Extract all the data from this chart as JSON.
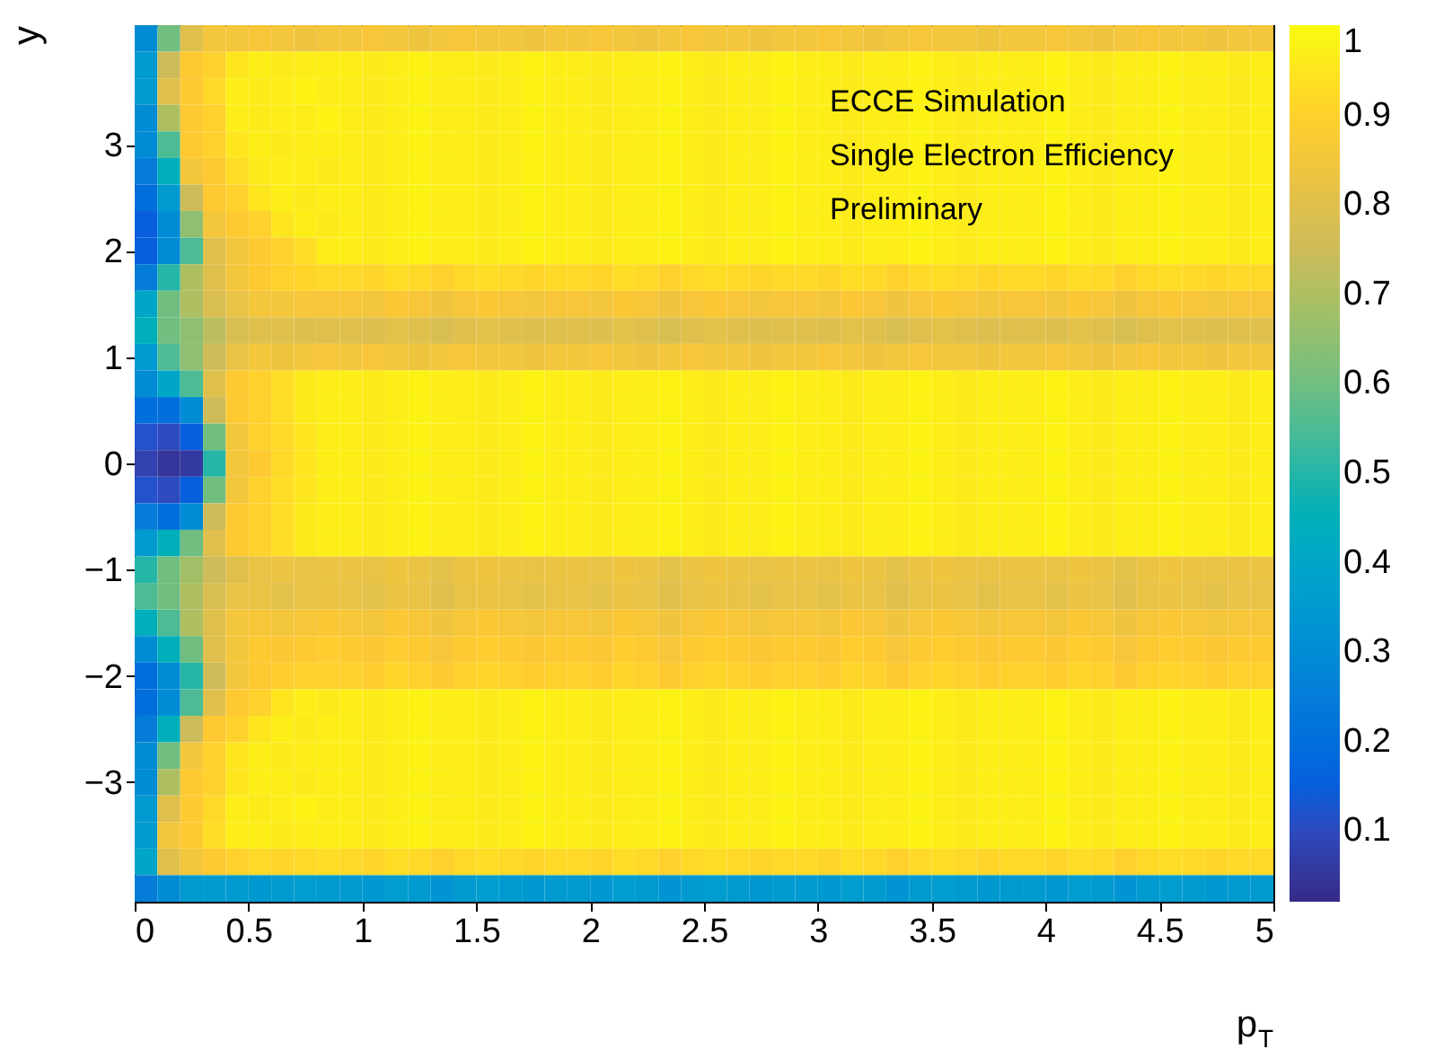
{
  "chart_data": {
    "type": "heatmap",
    "xlabel": "p$_{T}$",
    "ylabel": "y",
    "annotations": [
      "ECCE Simulation",
      "Single Electron Efficiency",
      "Preliminary"
    ],
    "xlim": [
      0,
      5
    ],
    "xticks": [
      0,
      0.5,
      1,
      1.5,
      2,
      2.5,
      3,
      3.5,
      4,
      4.5,
      5
    ],
    "ylim": [
      -4.125,
      4.125
    ],
    "yticks": [
      {
        "value": -3,
        "label": "−3"
      },
      {
        "value": -2,
        "label": "−2"
      },
      {
        "value": -1,
        "label": "−1"
      },
      0,
      1,
      2,
      3
    ],
    "clim": [
      0.02,
      1
    ],
    "cticks": [
      0.1,
      0.2,
      0.3,
      0.4,
      0.5,
      0.6,
      0.7,
      0.8,
      0.9,
      1
    ],
    "grid": false,
    "cells": [
      [
        0.3,
        0.6,
        0.8,
        0.85,
        0.85,
        0.86,
        0.85,
        0.84,
        0.85,
        0.85,
        0.86,
        0.85,
        0.84,
        0.85,
        0.86,
        0.85,
        0.85,
        0.84,
        0.85,
        0.85,
        0.86,
        0.85,
        0.84,
        0.85,
        0.86,
        0.85,
        0.85,
        0.84,
        0.85,
        0.85,
        0.86,
        0.85,
        0.84,
        0.85,
        0.86,
        0.85,
        0.85,
        0.84,
        0.85,
        0.85,
        0.86,
        0.85,
        0.84,
        0.85,
        0.86,
        0.85,
        0.85,
        0.84,
        0.85,
        0.85
      ],
      [
        0.35,
        0.75,
        0.88,
        0.9,
        0.95,
        0.97,
        0.96,
        0.97,
        0.97,
        0.97,
        0.96,
        0.97,
        0.98,
        0.97,
        0.97,
        0.96,
        0.97,
        0.98,
        0.97,
        0.97,
        0.96,
        0.97,
        0.97,
        0.98,
        0.97,
        0.96,
        0.97,
        0.97,
        0.98,
        0.97,
        0.97,
        0.96,
        0.97,
        0.97,
        0.98,
        0.97,
        0.96,
        0.97,
        0.97,
        0.97,
        0.98,
        0.97,
        0.96,
        0.97,
        0.97,
        0.98,
        0.97,
        0.97,
        0.96,
        0.97
      ],
      [
        0.35,
        0.8,
        0.88,
        0.92,
        0.97,
        0.96,
        0.97,
        0.98,
        0.97,
        0.97,
        0.96,
        0.97,
        0.98,
        0.97,
        0.97,
        0.96,
        0.97,
        0.98,
        0.97,
        0.97,
        0.96,
        0.97,
        0.97,
        0.98,
        0.97,
        0.96,
        0.97,
        0.97,
        0.98,
        0.97,
        0.97,
        0.96,
        0.97,
        0.97,
        0.98,
        0.97,
        0.96,
        0.97,
        0.97,
        0.97,
        0.98,
        0.97,
        0.96,
        0.97,
        0.97,
        0.98,
        0.97,
        0.97,
        0.96,
        0.97
      ],
      [
        0.3,
        0.7,
        0.88,
        0.9,
        0.97,
        0.96,
        0.97,
        0.97,
        0.98,
        0.97,
        0.96,
        0.97,
        0.98,
        0.97,
        0.97,
        0.96,
        0.97,
        0.98,
        0.97,
        0.97,
        0.96,
        0.97,
        0.97,
        0.98,
        0.97,
        0.96,
        0.97,
        0.97,
        0.98,
        0.97,
        0.97,
        0.96,
        0.97,
        0.97,
        0.98,
        0.97,
        0.96,
        0.97,
        0.97,
        0.97,
        0.98,
        0.97,
        0.96,
        0.97,
        0.97,
        0.98,
        0.97,
        0.97,
        0.96,
        0.97
      ],
      [
        0.3,
        0.55,
        0.88,
        0.9,
        0.95,
        0.97,
        0.96,
        0.97,
        0.97,
        0.97,
        0.96,
        0.97,
        0.98,
        0.97,
        0.97,
        0.96,
        0.97,
        0.98,
        0.97,
        0.97,
        0.96,
        0.97,
        0.97,
        0.98,
        0.97,
        0.96,
        0.97,
        0.97,
        0.98,
        0.97,
        0.97,
        0.96,
        0.97,
        0.97,
        0.98,
        0.97,
        0.96,
        0.97,
        0.97,
        0.97,
        0.98,
        0.97,
        0.96,
        0.97,
        0.97,
        0.98,
        0.97,
        0.97,
        0.96,
        0.97
      ],
      [
        0.25,
        0.45,
        0.85,
        0.88,
        0.93,
        0.96,
        0.97,
        0.97,
        0.96,
        0.97,
        0.96,
        0.97,
        0.98,
        0.97,
        0.97,
        0.96,
        0.97,
        0.98,
        0.97,
        0.97,
        0.96,
        0.97,
        0.97,
        0.98,
        0.97,
        0.96,
        0.97,
        0.97,
        0.98,
        0.97,
        0.97,
        0.96,
        0.97,
        0.97,
        0.98,
        0.97,
        0.96,
        0.97,
        0.97,
        0.97,
        0.98,
        0.97,
        0.96,
        0.97,
        0.97,
        0.98,
        0.97,
        0.97,
        0.96,
        0.97
      ],
      [
        0.2,
        0.35,
        0.75,
        0.88,
        0.9,
        0.95,
        0.97,
        0.96,
        0.97,
        0.97,
        0.96,
        0.97,
        0.98,
        0.97,
        0.97,
        0.96,
        0.97,
        0.98,
        0.97,
        0.97,
        0.96,
        0.97,
        0.97,
        0.98,
        0.97,
        0.96,
        0.97,
        0.97,
        0.98,
        0.97,
        0.97,
        0.96,
        0.97,
        0.97,
        0.98,
        0.97,
        0.96,
        0.97,
        0.97,
        0.97,
        0.98,
        0.97,
        0.96,
        0.97,
        0.97,
        0.98,
        0.97,
        0.97,
        0.96,
        0.97
      ],
      [
        0.15,
        0.3,
        0.65,
        0.85,
        0.88,
        0.9,
        0.95,
        0.97,
        0.96,
        0.97,
        0.96,
        0.97,
        0.98,
        0.97,
        0.97,
        0.96,
        0.97,
        0.98,
        0.97,
        0.97,
        0.96,
        0.97,
        0.97,
        0.98,
        0.97,
        0.96,
        0.97,
        0.97,
        0.98,
        0.97,
        0.97,
        0.96,
        0.97,
        0.97,
        0.98,
        0.97,
        0.96,
        0.97,
        0.97,
        0.97,
        0.98,
        0.97,
        0.96,
        0.97,
        0.97,
        0.98,
        0.97,
        0.97,
        0.96,
        0.97
      ],
      [
        0.15,
        0.3,
        0.55,
        0.8,
        0.85,
        0.88,
        0.9,
        0.93,
        0.97,
        0.97,
        0.96,
        0.97,
        0.98,
        0.97,
        0.97,
        0.96,
        0.97,
        0.98,
        0.97,
        0.97,
        0.96,
        0.97,
        0.97,
        0.98,
        0.97,
        0.96,
        0.97,
        0.97,
        0.98,
        0.97,
        0.97,
        0.96,
        0.97,
        0.97,
        0.98,
        0.97,
        0.96,
        0.97,
        0.97,
        0.97,
        0.98,
        0.97,
        0.96,
        0.97,
        0.97,
        0.98,
        0.97,
        0.97,
        0.96,
        0.97
      ],
      [
        0.25,
        0.5,
        0.7,
        0.8,
        0.85,
        0.88,
        0.9,
        0.91,
        0.92,
        0.92,
        0.91,
        0.93,
        0.92,
        0.9,
        0.92,
        0.93,
        0.92,
        0.91,
        0.92,
        0.92,
        0.91,
        0.93,
        0.92,
        0.9,
        0.92,
        0.93,
        0.92,
        0.91,
        0.92,
        0.92,
        0.91,
        0.93,
        0.92,
        0.9,
        0.92,
        0.93,
        0.92,
        0.91,
        0.92,
        0.92,
        0.91,
        0.93,
        0.92,
        0.9,
        0.92,
        0.93,
        0.92,
        0.91,
        0.92,
        0.92
      ],
      [
        0.4,
        0.6,
        0.7,
        0.78,
        0.82,
        0.85,
        0.85,
        0.86,
        0.86,
        0.86,
        0.85,
        0.87,
        0.86,
        0.84,
        0.86,
        0.87,
        0.86,
        0.85,
        0.86,
        0.86,
        0.85,
        0.87,
        0.86,
        0.84,
        0.86,
        0.87,
        0.86,
        0.85,
        0.86,
        0.86,
        0.85,
        0.87,
        0.86,
        0.84,
        0.86,
        0.87,
        0.86,
        0.85,
        0.86,
        0.86,
        0.85,
        0.87,
        0.86,
        0.84,
        0.86,
        0.87,
        0.86,
        0.85,
        0.86,
        0.86
      ],
      [
        0.45,
        0.6,
        0.65,
        0.72,
        0.78,
        0.8,
        0.8,
        0.79,
        0.8,
        0.8,
        0.79,
        0.81,
        0.8,
        0.78,
        0.8,
        0.81,
        0.8,
        0.79,
        0.8,
        0.8,
        0.79,
        0.81,
        0.8,
        0.78,
        0.8,
        0.81,
        0.8,
        0.79,
        0.8,
        0.8,
        0.79,
        0.81,
        0.8,
        0.78,
        0.8,
        0.81,
        0.8,
        0.79,
        0.8,
        0.8,
        0.79,
        0.81,
        0.8,
        0.78,
        0.8,
        0.81,
        0.8,
        0.79,
        0.8,
        0.8
      ],
      [
        0.35,
        0.55,
        0.65,
        0.75,
        0.82,
        0.85,
        0.84,
        0.85,
        0.86,
        0.85,
        0.86,
        0.85,
        0.84,
        0.85,
        0.86,
        0.85,
        0.85,
        0.84,
        0.85,
        0.85,
        0.86,
        0.85,
        0.84,
        0.85,
        0.86,
        0.85,
        0.85,
        0.84,
        0.85,
        0.85,
        0.86,
        0.85,
        0.84,
        0.85,
        0.86,
        0.85,
        0.85,
        0.84,
        0.85,
        0.85,
        0.86,
        0.85,
        0.84,
        0.85,
        0.86,
        0.85,
        0.85,
        0.84,
        0.85,
        0.85
      ],
      [
        0.3,
        0.4,
        0.55,
        0.8,
        0.88,
        0.9,
        0.93,
        0.96,
        0.97,
        0.97,
        0.96,
        0.97,
        0.98,
        0.97,
        0.97,
        0.96,
        0.97,
        0.98,
        0.97,
        0.97,
        0.96,
        0.97,
        0.97,
        0.98,
        0.97,
        0.96,
        0.97,
        0.97,
        0.98,
        0.97,
        0.97,
        0.96,
        0.97,
        0.97,
        0.98,
        0.97,
        0.96,
        0.97,
        0.97,
        0.97,
        0.98,
        0.97,
        0.96,
        0.97,
        0.97,
        0.98,
        0.97,
        0.97,
        0.96,
        0.97
      ],
      [
        0.2,
        0.2,
        0.3,
        0.75,
        0.88,
        0.9,
        0.93,
        0.96,
        0.97,
        0.97,
        0.96,
        0.97,
        0.98,
        0.97,
        0.97,
        0.96,
        0.97,
        0.98,
        0.97,
        0.97,
        0.96,
        0.97,
        0.97,
        0.98,
        0.97,
        0.96,
        0.97,
        0.97,
        0.98,
        0.97,
        0.97,
        0.96,
        0.97,
        0.97,
        0.98,
        0.97,
        0.96,
        0.97,
        0.97,
        0.97,
        0.98,
        0.97,
        0.96,
        0.97,
        0.97,
        0.98,
        0.97,
        0.97,
        0.96,
        0.97
      ],
      [
        0.12,
        0.1,
        0.15,
        0.6,
        0.85,
        0.9,
        0.92,
        0.95,
        0.97,
        0.97,
        0.96,
        0.97,
        0.98,
        0.97,
        0.97,
        0.96,
        0.97,
        0.98,
        0.97,
        0.97,
        0.96,
        0.97,
        0.97,
        0.98,
        0.97,
        0.96,
        0.97,
        0.97,
        0.98,
        0.97,
        0.97,
        0.96,
        0.97,
        0.97,
        0.98,
        0.97,
        0.96,
        0.97,
        0.97,
        0.97,
        0.98,
        0.97,
        0.96,
        0.97,
        0.97,
        0.98,
        0.97,
        0.97,
        0.96,
        0.97
      ],
      [
        0.08,
        0.05,
        0.06,
        0.5,
        0.85,
        0.88,
        0.92,
        0.95,
        0.97,
        0.97,
        0.96,
        0.97,
        0.98,
        0.97,
        0.97,
        0.96,
        0.97,
        0.98,
        0.97,
        0.97,
        0.96,
        0.97,
        0.97,
        0.98,
        0.97,
        0.96,
        0.97,
        0.97,
        0.98,
        0.97,
        0.97,
        0.96,
        0.97,
        0.97,
        0.98,
        0.97,
        0.96,
        0.97,
        0.97,
        0.97,
        0.98,
        0.97,
        0.96,
        0.97,
        0.97,
        0.98,
        0.97,
        0.97,
        0.96,
        0.97
      ],
      [
        0.12,
        0.1,
        0.15,
        0.6,
        0.85,
        0.9,
        0.93,
        0.95,
        0.97,
        0.97,
        0.96,
        0.97,
        0.98,
        0.97,
        0.97,
        0.96,
        0.97,
        0.98,
        0.97,
        0.97,
        0.96,
        0.97,
        0.97,
        0.98,
        0.97,
        0.96,
        0.97,
        0.97,
        0.98,
        0.97,
        0.97,
        0.96,
        0.97,
        0.97,
        0.98,
        0.97,
        0.96,
        0.97,
        0.97,
        0.97,
        0.98,
        0.97,
        0.96,
        0.97,
        0.97,
        0.98,
        0.97,
        0.97,
        0.96,
        0.97
      ],
      [
        0.25,
        0.2,
        0.3,
        0.75,
        0.88,
        0.9,
        0.93,
        0.96,
        0.97,
        0.97,
        0.96,
        0.97,
        0.98,
        0.97,
        0.97,
        0.96,
        0.97,
        0.98,
        0.97,
        0.97,
        0.96,
        0.97,
        0.97,
        0.98,
        0.97,
        0.96,
        0.97,
        0.97,
        0.98,
        0.97,
        0.97,
        0.96,
        0.97,
        0.97,
        0.98,
        0.97,
        0.96,
        0.97,
        0.97,
        0.97,
        0.98,
        0.97,
        0.96,
        0.97,
        0.97,
        0.98,
        0.97,
        0.97,
        0.96,
        0.97
      ],
      [
        0.35,
        0.45,
        0.6,
        0.8,
        0.88,
        0.9,
        0.93,
        0.96,
        0.97,
        0.97,
        0.96,
        0.97,
        0.98,
        0.97,
        0.97,
        0.96,
        0.97,
        0.98,
        0.97,
        0.97,
        0.96,
        0.97,
        0.97,
        0.98,
        0.97,
        0.96,
        0.97,
        0.97,
        0.98,
        0.97,
        0.97,
        0.96,
        0.97,
        0.97,
        0.98,
        0.97,
        0.96,
        0.97,
        0.97,
        0.97,
        0.98,
        0.97,
        0.96,
        0.97,
        0.97,
        0.98,
        0.97,
        0.97,
        0.96,
        0.97
      ],
      [
        0.5,
        0.6,
        0.68,
        0.75,
        0.8,
        0.82,
        0.83,
        0.82,
        0.83,
        0.83,
        0.82,
        0.84,
        0.83,
        0.81,
        0.83,
        0.84,
        0.83,
        0.82,
        0.83,
        0.83,
        0.82,
        0.84,
        0.83,
        0.81,
        0.83,
        0.84,
        0.83,
        0.82,
        0.83,
        0.83,
        0.82,
        0.84,
        0.83,
        0.81,
        0.83,
        0.84,
        0.83,
        0.82,
        0.83,
        0.83,
        0.82,
        0.84,
        0.83,
        0.81,
        0.83,
        0.84,
        0.83,
        0.82,
        0.83,
        0.83
      ],
      [
        0.55,
        0.6,
        0.7,
        0.78,
        0.82,
        0.82,
        0.81,
        0.82,
        0.83,
        0.82,
        0.81,
        0.83,
        0.82,
        0.8,
        0.82,
        0.83,
        0.82,
        0.81,
        0.82,
        0.82,
        0.81,
        0.83,
        0.82,
        0.8,
        0.82,
        0.83,
        0.82,
        0.81,
        0.82,
        0.82,
        0.81,
        0.83,
        0.82,
        0.8,
        0.82,
        0.83,
        0.82,
        0.81,
        0.82,
        0.82,
        0.81,
        0.83,
        0.82,
        0.8,
        0.82,
        0.83,
        0.82,
        0.81,
        0.82,
        0.82
      ],
      [
        0.45,
        0.55,
        0.7,
        0.8,
        0.85,
        0.86,
        0.85,
        0.86,
        0.87,
        0.86,
        0.85,
        0.87,
        0.86,
        0.84,
        0.86,
        0.87,
        0.86,
        0.85,
        0.86,
        0.86,
        0.85,
        0.87,
        0.86,
        0.84,
        0.86,
        0.87,
        0.86,
        0.85,
        0.86,
        0.86,
        0.85,
        0.87,
        0.86,
        0.84,
        0.86,
        0.87,
        0.86,
        0.85,
        0.86,
        0.86,
        0.85,
        0.87,
        0.86,
        0.84,
        0.86,
        0.87,
        0.86,
        0.85,
        0.86,
        0.86
      ],
      [
        0.3,
        0.45,
        0.6,
        0.8,
        0.85,
        0.88,
        0.87,
        0.88,
        0.89,
        0.88,
        0.87,
        0.89,
        0.88,
        0.86,
        0.88,
        0.89,
        0.88,
        0.87,
        0.88,
        0.88,
        0.87,
        0.89,
        0.88,
        0.86,
        0.88,
        0.89,
        0.88,
        0.87,
        0.88,
        0.88,
        0.87,
        0.89,
        0.88,
        0.86,
        0.88,
        0.89,
        0.88,
        0.87,
        0.88,
        0.88,
        0.87,
        0.89,
        0.88,
        0.86,
        0.88,
        0.89,
        0.88,
        0.87,
        0.88,
        0.88
      ],
      [
        0.2,
        0.3,
        0.5,
        0.75,
        0.85,
        0.88,
        0.89,
        0.9,
        0.9,
        0.9,
        0.89,
        0.91,
        0.9,
        0.88,
        0.9,
        0.91,
        0.9,
        0.89,
        0.9,
        0.9,
        0.89,
        0.91,
        0.9,
        0.88,
        0.9,
        0.91,
        0.9,
        0.89,
        0.9,
        0.9,
        0.89,
        0.91,
        0.9,
        0.88,
        0.9,
        0.91,
        0.9,
        0.89,
        0.9,
        0.9,
        0.89,
        0.91,
        0.9,
        0.88,
        0.9,
        0.91,
        0.9,
        0.89,
        0.9,
        0.9
      ],
      [
        0.2,
        0.3,
        0.55,
        0.8,
        0.88,
        0.9,
        0.95,
        0.97,
        0.96,
        0.97,
        0.96,
        0.97,
        0.98,
        0.97,
        0.97,
        0.96,
        0.97,
        0.98,
        0.97,
        0.97,
        0.96,
        0.97,
        0.97,
        0.98,
        0.97,
        0.96,
        0.97,
        0.97,
        0.98,
        0.97,
        0.97,
        0.96,
        0.97,
        0.97,
        0.98,
        0.97,
        0.96,
        0.97,
        0.97,
        0.97,
        0.98,
        0.97,
        0.96,
        0.97,
        0.97,
        0.98,
        0.97,
        0.97,
        0.96,
        0.97
      ],
      [
        0.25,
        0.45,
        0.75,
        0.88,
        0.9,
        0.95,
        0.97,
        0.96,
        0.97,
        0.97,
        0.96,
        0.97,
        0.98,
        0.97,
        0.97,
        0.96,
        0.97,
        0.98,
        0.97,
        0.97,
        0.96,
        0.97,
        0.97,
        0.98,
        0.97,
        0.96,
        0.97,
        0.97,
        0.98,
        0.97,
        0.97,
        0.96,
        0.97,
        0.97,
        0.98,
        0.97,
        0.96,
        0.97,
        0.97,
        0.97,
        0.98,
        0.97,
        0.96,
        0.97,
        0.97,
        0.98,
        0.97,
        0.97,
        0.96,
        0.97
      ],
      [
        0.3,
        0.6,
        0.85,
        0.9,
        0.95,
        0.97,
        0.96,
        0.97,
        0.97,
        0.97,
        0.96,
        0.97,
        0.98,
        0.97,
        0.97,
        0.96,
        0.97,
        0.98,
        0.97,
        0.97,
        0.96,
        0.97,
        0.97,
        0.98,
        0.97,
        0.96,
        0.97,
        0.97,
        0.98,
        0.97,
        0.97,
        0.96,
        0.97,
        0.97,
        0.98,
        0.97,
        0.96,
        0.97,
        0.97,
        0.97,
        0.98,
        0.97,
        0.96,
        0.97,
        0.97,
        0.98,
        0.97,
        0.97,
        0.96,
        0.97
      ],
      [
        0.3,
        0.7,
        0.88,
        0.9,
        0.95,
        0.97,
        0.97,
        0.96,
        0.97,
        0.97,
        0.96,
        0.97,
        0.98,
        0.97,
        0.97,
        0.96,
        0.97,
        0.98,
        0.97,
        0.97,
        0.96,
        0.97,
        0.97,
        0.98,
        0.97,
        0.96,
        0.97,
        0.97,
        0.98,
        0.97,
        0.97,
        0.96,
        0.97,
        0.97,
        0.98,
        0.97,
        0.96,
        0.97,
        0.97,
        0.97,
        0.98,
        0.97,
        0.96,
        0.97,
        0.97,
        0.98,
        0.97,
        0.97,
        0.96,
        0.97
      ],
      [
        0.35,
        0.8,
        0.88,
        0.92,
        0.97,
        0.96,
        0.97,
        0.98,
        0.97,
        0.97,
        0.96,
        0.97,
        0.98,
        0.97,
        0.97,
        0.96,
        0.97,
        0.98,
        0.97,
        0.97,
        0.96,
        0.97,
        0.97,
        0.98,
        0.97,
        0.96,
        0.97,
        0.97,
        0.98,
        0.97,
        0.97,
        0.96,
        0.97,
        0.97,
        0.98,
        0.97,
        0.96,
        0.97,
        0.97,
        0.97,
        0.98,
        0.97,
        0.96,
        0.97,
        0.97,
        0.98,
        0.97,
        0.97,
        0.96,
        0.97
      ],
      [
        0.35,
        0.85,
        0.88,
        0.93,
        0.97,
        0.97,
        0.96,
        0.97,
        0.97,
        0.97,
        0.96,
        0.97,
        0.98,
        0.97,
        0.97,
        0.96,
        0.97,
        0.98,
        0.97,
        0.97,
        0.96,
        0.97,
        0.97,
        0.98,
        0.97,
        0.96,
        0.97,
        0.97,
        0.98,
        0.97,
        0.97,
        0.96,
        0.97,
        0.97,
        0.98,
        0.97,
        0.96,
        0.97,
        0.97,
        0.97,
        0.98,
        0.97,
        0.96,
        0.97,
        0.97,
        0.98,
        0.97,
        0.97,
        0.96,
        0.97
      ],
      [
        0.4,
        0.8,
        0.85,
        0.88,
        0.9,
        0.92,
        0.91,
        0.92,
        0.93,
        0.92,
        0.91,
        0.93,
        0.92,
        0.9,
        0.92,
        0.93,
        0.92,
        0.91,
        0.92,
        0.92,
        0.91,
        0.93,
        0.92,
        0.9,
        0.92,
        0.93,
        0.92,
        0.91,
        0.92,
        0.92,
        0.91,
        0.93,
        0.92,
        0.9,
        0.92,
        0.93,
        0.92,
        0.91,
        0.92,
        0.92,
        0.91,
        0.93,
        0.92,
        0.9,
        0.92,
        0.93,
        0.92,
        0.91,
        0.92,
        0.92
      ],
      [
        0.25,
        0.3,
        0.35,
        0.35,
        0.35,
        0.34,
        0.35,
        0.36,
        0.35,
        0.35,
        0.34,
        0.36,
        0.35,
        0.33,
        0.35,
        0.36,
        0.35,
        0.34,
        0.35,
        0.35,
        0.34,
        0.36,
        0.35,
        0.33,
        0.35,
        0.36,
        0.35,
        0.34,
        0.35,
        0.35,
        0.34,
        0.36,
        0.35,
        0.33,
        0.35,
        0.36,
        0.35,
        0.34,
        0.35,
        0.35,
        0.34,
        0.36,
        0.35,
        0.33,
        0.35,
        0.36,
        0.35,
        0.34,
        0.35,
        0.35
      ]
    ]
  }
}
